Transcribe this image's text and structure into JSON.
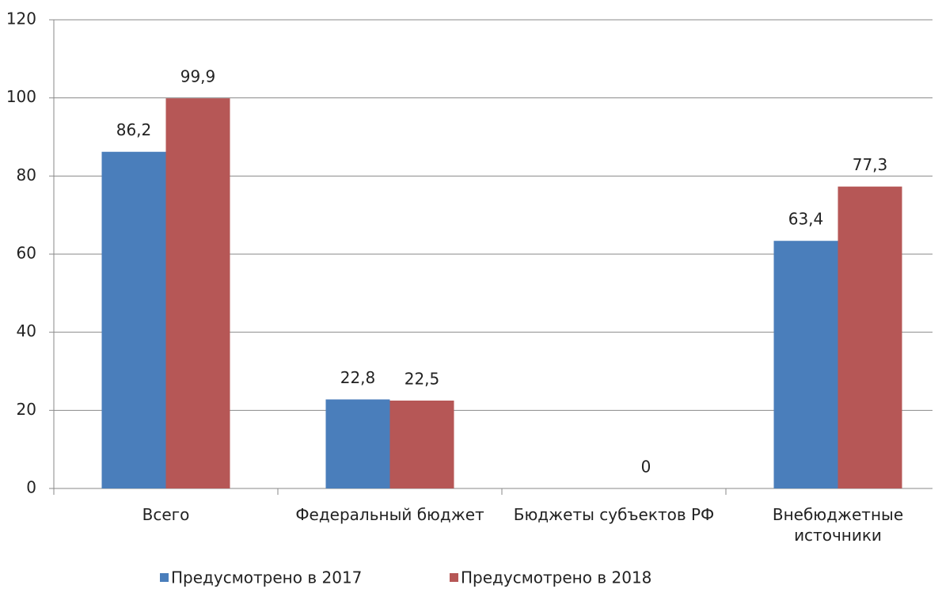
{
  "chart_data": {
    "type": "bar",
    "categories": [
      "Всего",
      "Федеральный бюджет",
      "Бюджеты субъектов РФ",
      "Внебюджетные источники"
    ],
    "series": [
      {
        "name": "Предусмотрено в 2017",
        "color": "#4a7ebb",
        "values": [
          86.2,
          22.8,
          null,
          63.4
        ],
        "value_labels": [
          "86,2",
          "22,8",
          null,
          "63,4"
        ]
      },
      {
        "name": "Предусмотрено в 2018",
        "color": "#b65756",
        "values": [
          99.9,
          22.5,
          0,
          77.3
        ],
        "value_labels": [
          "99,9",
          "22,5",
          "0",
          "77,3"
        ]
      }
    ],
    "ylim": [
      0,
      120
    ],
    "yticks": [
      0,
      20,
      40,
      60,
      80,
      100,
      120
    ],
    "grid": true,
    "legend": "bottom"
  }
}
